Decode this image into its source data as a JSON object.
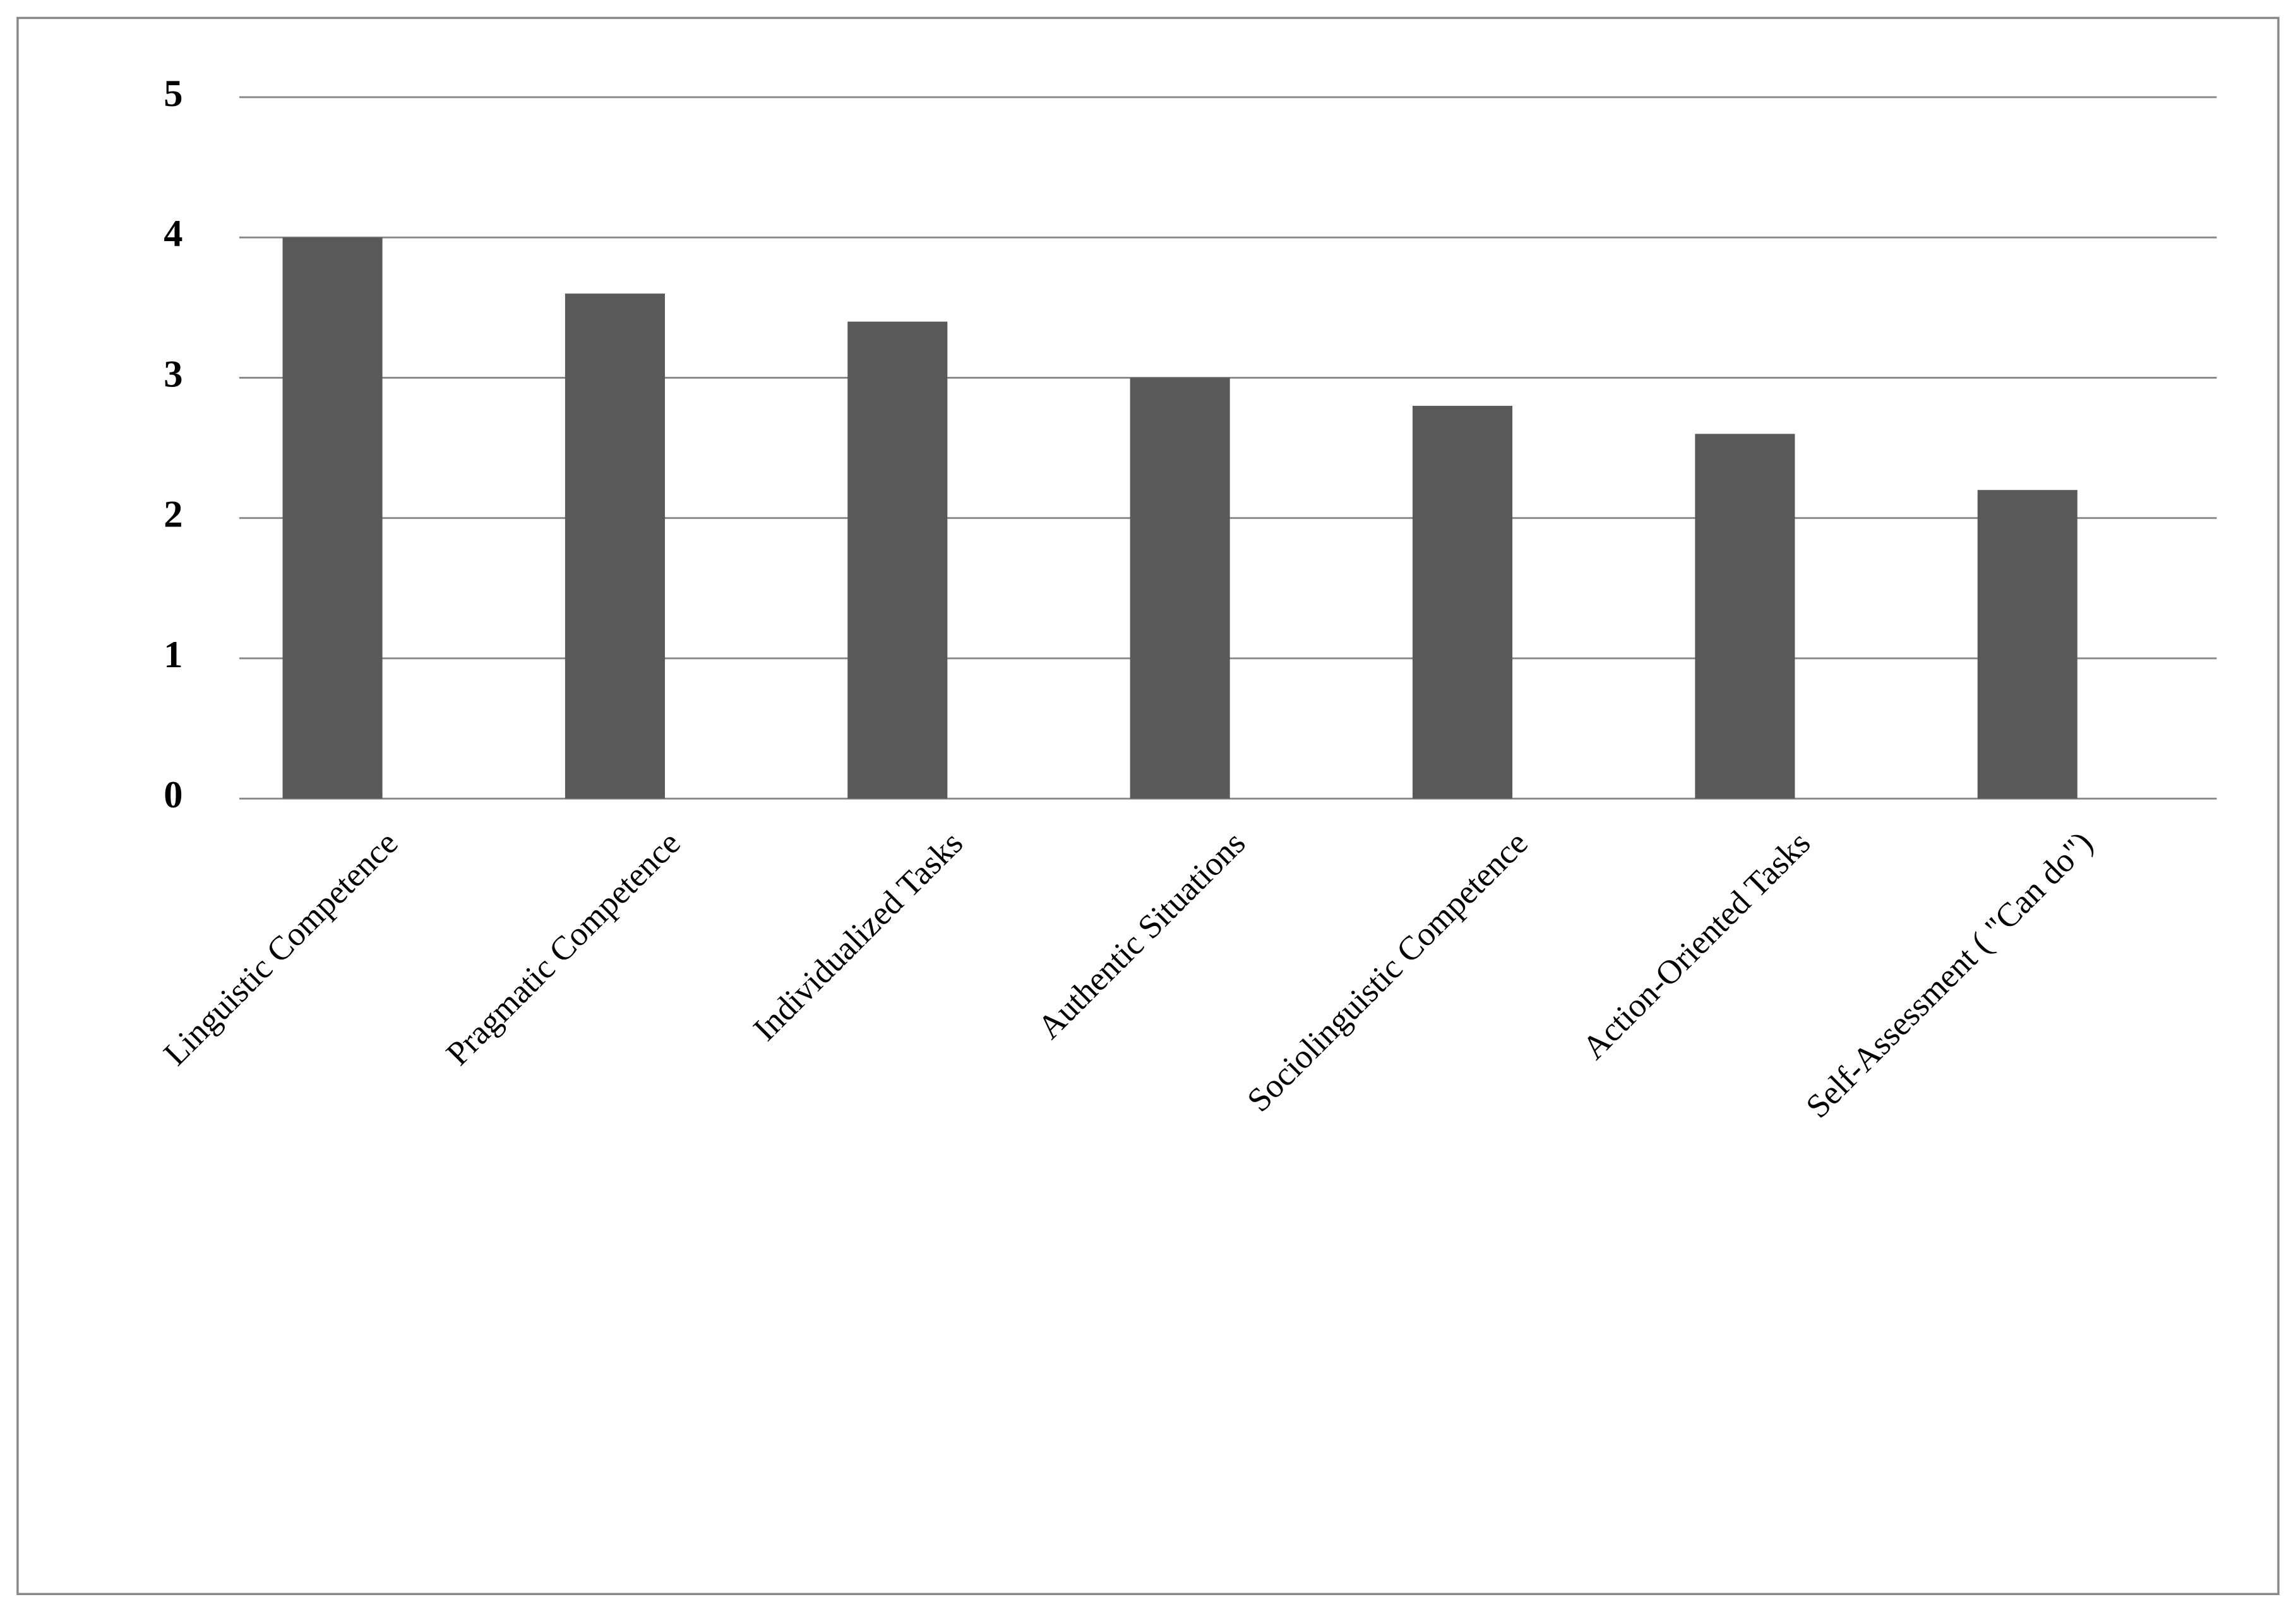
{
  "chart_data": {
    "type": "bar",
    "categories": [
      "Linguistic Competence",
      "Pragmatic Competence",
      "Individualized Tasks",
      "Authentic Situations",
      "Sociolinguistic Competence",
      "Action-Oriented Tasks",
      "Self-Assessment ( \"Can do\")"
    ],
    "values": [
      4.0,
      3.6,
      3.4,
      3.0,
      2.8,
      2.6,
      2.2
    ],
    "color": "#595959",
    "ylim": [
      0,
      5
    ],
    "yticks": [
      0,
      1,
      2,
      3,
      4,
      5
    ],
    "grid": true
  }
}
